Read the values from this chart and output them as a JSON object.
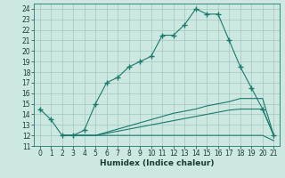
{
  "xlabel": "Humidex (Indice chaleur)",
  "xlim": [
    -0.5,
    21.5
  ],
  "ylim": [
    11,
    24.5
  ],
  "yticks": [
    11,
    12,
    13,
    14,
    15,
    16,
    17,
    18,
    19,
    20,
    21,
    22,
    23,
    24
  ],
  "xticks": [
    0,
    1,
    2,
    3,
    4,
    5,
    6,
    7,
    8,
    9,
    10,
    11,
    12,
    13,
    14,
    15,
    16,
    17,
    18,
    19,
    20,
    21
  ],
  "bg_color": "#cce8e0",
  "line_color": "#1a7a6e",
  "grid_color": "#a0c8be",
  "main_x": [
    0,
    1,
    2,
    3,
    4,
    5,
    6,
    7,
    8,
    9,
    10,
    11,
    12,
    13,
    14,
    15,
    16,
    17,
    18,
    19,
    20,
    21
  ],
  "main_y": [
    14.5,
    13.5,
    12.0,
    12.0,
    12.5,
    15.0,
    17.0,
    17.5,
    18.5,
    19.0,
    19.5,
    21.5,
    21.5,
    22.5,
    24.0,
    23.5,
    23.5,
    21.0,
    18.5,
    16.5,
    14.5,
    12.0
  ],
  "flat1_x": [
    2,
    3,
    4,
    5,
    6,
    7,
    8,
    9,
    10,
    11,
    12,
    13,
    14,
    15,
    16,
    17,
    18,
    19,
    20,
    21
  ],
  "flat1_y": [
    12.0,
    12.0,
    12.0,
    12.0,
    12.0,
    12.0,
    12.0,
    12.0,
    12.0,
    12.0,
    12.0,
    12.0,
    12.0,
    12.0,
    12.0,
    12.0,
    12.0,
    12.0,
    12.0,
    11.5
  ],
  "flat2_x": [
    2,
    3,
    4,
    5,
    6,
    7,
    8,
    9,
    10,
    11,
    12,
    13,
    14,
    15,
    16,
    17,
    18,
    19,
    20,
    21
  ],
  "flat2_y": [
    12.0,
    12.0,
    12.0,
    12.0,
    12.2,
    12.4,
    12.6,
    12.8,
    13.0,
    13.2,
    13.4,
    13.6,
    13.8,
    14.0,
    14.2,
    14.4,
    14.5,
    14.5,
    14.5,
    12.0
  ],
  "flat3_x": [
    2,
    3,
    4,
    5,
    6,
    7,
    8,
    9,
    10,
    11,
    12,
    13,
    14,
    15,
    16,
    17,
    18,
    19,
    20,
    21
  ],
  "flat3_y": [
    12.0,
    12.0,
    12.0,
    12.0,
    12.3,
    12.6,
    12.9,
    13.2,
    13.5,
    13.8,
    14.1,
    14.3,
    14.5,
    14.8,
    15.0,
    15.2,
    15.5,
    15.5,
    15.5,
    12.0
  ]
}
